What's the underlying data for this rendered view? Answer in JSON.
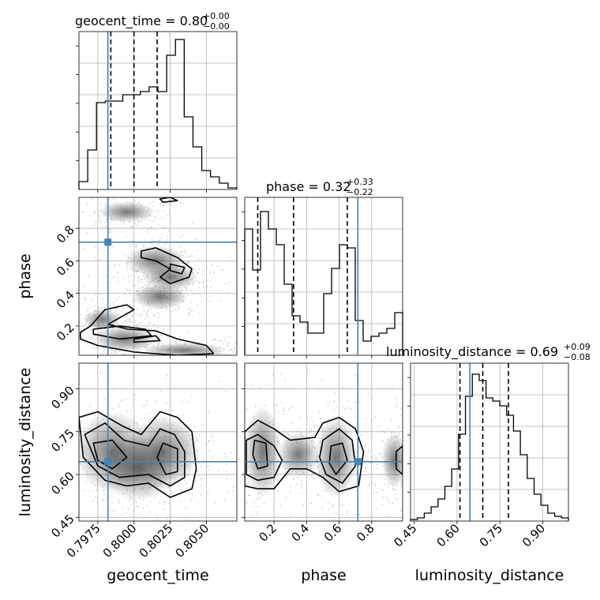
{
  "chart_data": {
    "type": "corner",
    "parameters": [
      "geocent_time",
      "phase",
      "luminosity_distance"
    ],
    "axis_labels": {
      "geocent_time": "geocent_time",
      "phase": "phase",
      "luminosity_distance": "luminosity_distance"
    },
    "titles": {
      "geocent_time": {
        "name": "geocent_time",
        "median": "0.80",
        "plus": "+0.00",
        "minus": "−0.00"
      },
      "phase": {
        "name": "phase",
        "median": "0.32",
        "plus": "+0.33",
        "minus": "−0.22"
      },
      "luminosity_distance": {
        "name": "luminosity_distance",
        "median": "0.69",
        "plus": "+0.09",
        "minus": "−0.08"
      }
    },
    "ranges": {
      "geocent_time": [
        0.7962,
        0.8071
      ],
      "phase": [
        0.02,
        0.99
      ],
      "luminosity_distance": [
        0.437,
        0.99
      ]
    },
    "ticks": {
      "geocent_time": {
        "values": [
          0.7975,
          0.8,
          0.8025,
          0.805
        ],
        "labels": [
          "0.7975",
          "0.8000",
          "0.8025",
          "0.8050"
        ]
      },
      "phase": {
        "values": [
          0.2,
          0.4,
          0.6,
          0.8
        ],
        "labels": [
          "0.2",
          "0.4",
          "0.6",
          "0.8"
        ]
      },
      "luminosity_distance": {
        "values": [
          0.45,
          0.6,
          0.75,
          0.9
        ],
        "labels": [
          "0.45",
          "0.60",
          "0.75",
          "0.90"
        ]
      }
    },
    "truths": {
      "geocent_time": 0.7982,
      "phase": 0.715,
      "luminosity_distance": 0.645
    },
    "quantiles": {
      "geocent_time": [
        0.7984,
        0.8,
        0.8016
      ],
      "phase": [
        0.1,
        0.32,
        0.65
      ],
      "luminosity_distance": [
        0.61,
        0.69,
        0.78
      ]
    },
    "histograms": {
      "geocent_time": [
        0.05,
        0.25,
        0.55,
        0.56,
        0.56,
        0.6,
        0.6,
        0.62,
        0.65,
        0.62,
        0.85,
        0.95,
        0.46,
        0.27,
        0.12,
        0.08,
        0.04,
        0.01
      ],
      "phase": [
        0.8,
        0.54,
        0.91,
        0.8,
        0.7,
        0.45,
        0.25,
        0.21,
        0.14,
        0.14,
        0.39,
        0.55,
        0.7,
        0.68,
        0.22,
        0.09,
        0.12,
        0.14,
        0.17,
        0.27
      ],
      "luminosity_distance": [
        0.01,
        0.02,
        0.05,
        0.09,
        0.14,
        0.22,
        0.33,
        0.55,
        0.79,
        0.93,
        0.89,
        0.78,
        0.76,
        0.73,
        0.67,
        0.57,
        0.42,
        0.27,
        0.17,
        0.1,
        0.05,
        0.03,
        0.02
      ]
    },
    "grid": true
  }
}
